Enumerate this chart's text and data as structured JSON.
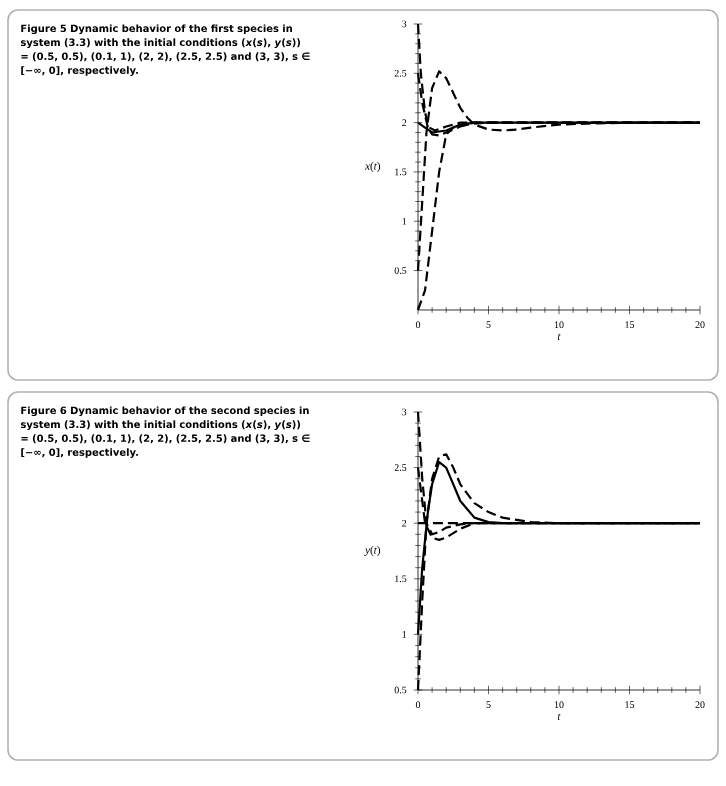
{
  "chart_data": [
    {
      "type": "line",
      "title": "Figure 5  Dynamic behavior of the first species in system (3.3) with the initial conditions (*x*(*s*), *y*(*s*)) = (0.5, 0.5), (0.1, 1), (2, 2), (2.5, 2.5) and (3, 3), s ∈ [−∞, 0], respectively.",
      "xlabel": "*t*",
      "ylabel": "*x*(*t*)",
      "xlim": [
        0,
        20
      ],
      "ylim": [
        0.1,
        3
      ],
      "xticks": [
        0,
        5,
        10,
        15,
        20
      ],
      "yticks": [
        0.5,
        1,
        1.5,
        2,
        2.5,
        3
      ],
      "series": [
        {
          "color": "#000000",
          "line_style": "dashed",
          "x": [
            0,
            0.3,
            0.6,
            1,
            1.5,
            2,
            2.5,
            3,
            3.5,
            4,
            5,
            6,
            7,
            8,
            10,
            12,
            15,
            20
          ],
          "values": [
            0.5,
            1.2,
            1.9,
            2.35,
            2.52,
            2.45,
            2.3,
            2.15,
            2.05,
            1.98,
            1.93,
            1.92,
            1.93,
            1.95,
            1.98,
            1.99,
            2,
            2
          ]
        },
        {
          "color": "#000000",
          "line_style": "dashed",
          "x": [
            0,
            0.5,
            1,
            1.5,
            2,
            2.5,
            3,
            4,
            5,
            20
          ],
          "values": [
            0.1,
            0.3,
            0.9,
            1.5,
            1.88,
            1.95,
            1.97,
            1.99,
            2,
            2
          ]
        },
        {
          "color": "#000000",
          "line_style": "solid",
          "x": [
            0,
            0.5,
            1,
            2,
            3,
            4,
            20
          ],
          "values": [
            2,
            1.95,
            1.9,
            1.92,
            1.98,
            2,
            2
          ]
        },
        {
          "color": "#000000",
          "line_style": "dashed",
          "x": [
            0,
            0.3,
            0.7,
            1,
            1.5,
            2,
            3,
            4,
            20
          ],
          "values": [
            2.5,
            2.2,
            1.95,
            1.88,
            1.87,
            1.9,
            1.96,
            2,
            2
          ]
        },
        {
          "color": "#000000",
          "line_style": "dashed",
          "x": [
            0,
            0.2,
            0.5,
            0.8,
            1.2,
            2,
            3,
            20
          ],
          "values": [
            3,
            2.5,
            2.1,
            1.95,
            1.92,
            1.96,
            2,
            2
          ]
        }
      ]
    },
    {
      "type": "line",
      "title": "Figure 6  Dynamic behavior of the second species in system (3.3) with the initial conditions (*x*(*s*), *y*(*s*)) = (0.5, 0.5), (0.1, 1), (2, 2), (2.5, 2.5) and (3, 3), s ∈ [−∞, 0], respectively.",
      "xlabel": "*t*",
      "ylabel": "*y*(*t*)",
      "xlim": [
        0,
        20
      ],
      "ylim": [
        0.5,
        3
      ],
      "xticks": [
        0,
        5,
        10,
        15,
        20
      ],
      "yticks": [
        0.5,
        1,
        1.5,
        2,
        2.5,
        3
      ],
      "series": [
        {
          "color": "#000000",
          "line_style": "dashed",
          "x": [
            0,
            0.3,
            0.6,
            1,
            1.5,
            2,
            2.5,
            3,
            4,
            5,
            6,
            8,
            10,
            20
          ],
          "values": [
            0.5,
            1.3,
            2,
            2.4,
            2.6,
            2.62,
            2.5,
            2.35,
            2.18,
            2.1,
            2.05,
            2.01,
            2,
            2
          ]
        },
        {
          "color": "#000000",
          "line_style": "solid",
          "x": [
            0,
            0.3,
            0.7,
            1,
            1.5,
            2,
            2.5,
            3,
            4,
            5,
            6,
            20
          ],
          "values": [
            1,
            1.6,
            2.1,
            2.35,
            2.55,
            2.5,
            2.35,
            2.2,
            2.05,
            2.01,
            2,
            2
          ]
        },
        {
          "color": "#000000",
          "line_style": "dashed",
          "x": [
            0,
            20
          ],
          "values": [
            2,
            2
          ]
        },
        {
          "color": "#000000",
          "line_style": "dashed",
          "x": [
            0,
            0.5,
            1,
            1.5,
            2,
            3,
            4,
            20
          ],
          "values": [
            2.5,
            2,
            1.87,
            1.85,
            1.87,
            1.95,
            2,
            2
          ]
        },
        {
          "color": "#000000",
          "line_style": "dashed",
          "x": [
            0,
            0.3,
            0.6,
            1,
            1.5,
            2,
            3,
            4,
            20
          ],
          "values": [
            3,
            2.4,
            2,
            1.9,
            1.92,
            1.96,
            1.99,
            2,
            2
          ]
        }
      ]
    }
  ]
}
